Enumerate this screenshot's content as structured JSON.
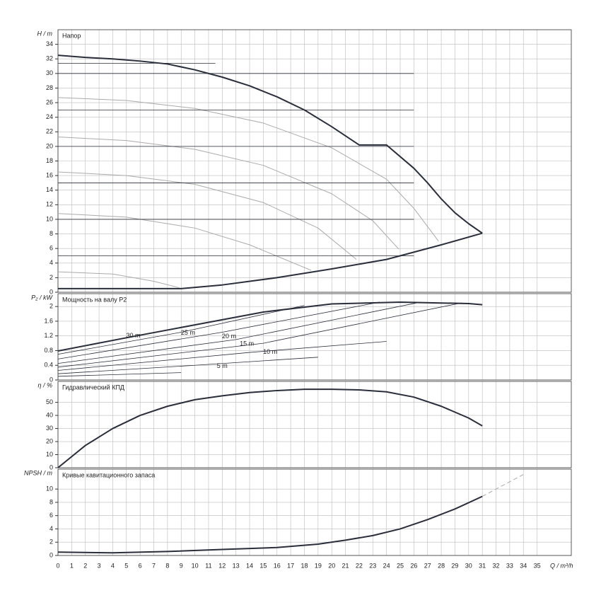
{
  "chart_data": [
    {
      "type": "line",
      "title": "Напор",
      "y_label": "H / m",
      "xlim": [
        0,
        37.5
      ],
      "ylim": [
        0,
        36
      ],
      "yticks": [
        0,
        2,
        4,
        6,
        8,
        10,
        12,
        14,
        16,
        18,
        20,
        22,
        24,
        26,
        28,
        30,
        32,
        34
      ],
      "grid": true,
      "series": [
        {
          "color": "#2a2e3a",
          "width": 2,
          "x": [
            0,
            2,
            4,
            6,
            8,
            10,
            12,
            14,
            16,
            18,
            20,
            22,
            24,
            26,
            27,
            28,
            29,
            30,
            31
          ],
          "values": [
            32.5,
            32.2,
            32,
            31.7,
            31.3,
            30.5,
            29.5,
            28.3,
            26.8,
            25,
            22.7,
            20.2,
            20.2,
            17,
            15,
            12.8,
            10.9,
            9.4,
            8.1
          ]
        },
        {
          "color": "#2a2e3a",
          "width": 2,
          "x": [
            0,
            9,
            12,
            16,
            20,
            24,
            25,
            28,
            31
          ],
          "values": [
            0.5,
            0.5,
            1,
            2,
            3.2,
            4.5,
            5,
            6.5,
            8.1
          ]
        },
        {
          "color": "#aaaaaa",
          "width": 1,
          "x": [
            0,
            5,
            10,
            15,
            20,
            24,
            26,
            27.8
          ],
          "values": [
            26.7,
            26.3,
            25.2,
            23.2,
            19.8,
            15.5,
            11.5,
            7
          ]
        },
        {
          "color": "#aaaaaa",
          "width": 1,
          "x": [
            0,
            5,
            10,
            15,
            20,
            23,
            24.9
          ],
          "values": [
            21.3,
            20.8,
            19.6,
            17.4,
            13.5,
            9.8,
            5.9
          ]
        },
        {
          "color": "#aaaaaa",
          "width": 1,
          "x": [
            0,
            5,
            10,
            15,
            19,
            21.8
          ],
          "values": [
            16.5,
            16,
            14.8,
            12.3,
            8.8,
            4.5
          ]
        },
        {
          "color": "#aaaaaa",
          "width": 1,
          "x": [
            0,
            5,
            10,
            14,
            18.5
          ],
          "values": [
            10.8,
            10.3,
            8.8,
            6.5,
            3
          ]
        },
        {
          "color": "#aaaaaa",
          "width": 1,
          "x": [
            0,
            4,
            7,
            8.9
          ],
          "values": [
            2.8,
            2.5,
            1.5,
            0.6
          ]
        },
        {
          "color": "#2a2e3a",
          "width": 0.8,
          "x": [
            0,
            11.5
          ],
          "values": [
            31.4,
            31.4
          ]
        },
        {
          "color": "#2a2e3a",
          "width": 0.8,
          "x": [
            0,
            26
          ],
          "values": [
            30,
            30
          ]
        },
        {
          "color": "#2a2e3a",
          "width": 0.8,
          "x": [
            0,
            26
          ],
          "values": [
            25,
            25
          ]
        },
        {
          "color": "#2a2e3a",
          "width": 0.8,
          "x": [
            0,
            26
          ],
          "values": [
            20,
            20
          ]
        },
        {
          "color": "#2a2e3a",
          "width": 0.8,
          "x": [
            0,
            26
          ],
          "values": [
            15,
            15
          ]
        },
        {
          "color": "#2a2e3a",
          "width": 0.8,
          "x": [
            0,
            26
          ],
          "values": [
            10,
            10
          ]
        },
        {
          "color": "#2a2e3a",
          "width": 0.8,
          "x": [
            0,
            26
          ],
          "values": [
            5,
            5
          ]
        }
      ]
    },
    {
      "type": "line",
      "title": "Мощность на валу P2",
      "y_label": "P₂ / kW",
      "xlim": [
        0,
        37.5
      ],
      "ylim": [
        0,
        2.35
      ],
      "yticks": [
        0,
        0.4,
        0.8,
        1.2,
        1.6,
        2
      ],
      "grid": true,
      "series": [
        {
          "color": "#2a2e3a",
          "width": 2,
          "x": [
            0,
            5,
            10,
            15,
            20,
            25,
            30,
            31
          ],
          "values": [
            0.79,
            1.15,
            1.5,
            1.85,
            2.07,
            2.12,
            2.08,
            2.05
          ]
        },
        {
          "color": "#2a2e3a",
          "width": 0.8,
          "x": [
            0,
            9,
            18
          ],
          "values": [
            0.7,
            1.3,
            2.03
          ]
        },
        {
          "color": "#2a2e3a",
          "width": 0.8,
          "x": [
            0,
            12,
            23.5
          ],
          "values": [
            0.57,
            1.3,
            2.12
          ]
        },
        {
          "color": "#2a2e3a",
          "width": 0.8,
          "x": [
            0,
            13,
            26.5
          ],
          "values": [
            0.45,
            1.1,
            2.12
          ]
        },
        {
          "color": "#2a2e3a",
          "width": 0.8,
          "x": [
            0,
            15,
            29.5
          ],
          "values": [
            0.35,
            1.0,
            2.1
          ]
        },
        {
          "color": "#2a2e3a",
          "width": 0.8,
          "x": [
            0,
            14,
            24
          ],
          "values": [
            0.26,
            0.75,
            1.05
          ]
        },
        {
          "color": "#2a2e3a",
          "width": 0.8,
          "x": [
            0,
            10,
            19
          ],
          "values": [
            0.17,
            0.4,
            0.62
          ]
        },
        {
          "color": "#2a2e3a",
          "width": 0.8,
          "x": [
            0,
            9
          ],
          "values": [
            0.1,
            0.2
          ]
        }
      ],
      "annotations": [
        {
          "text": "30 m",
          "x": 5.5,
          "y": 1.2
        },
        {
          "text": "25 m",
          "x": 9.5,
          "y": 1.28
        },
        {
          "text": "20 m",
          "x": 12.5,
          "y": 1.18
        },
        {
          "text": "15 m",
          "x": 13.8,
          "y": 0.98
        },
        {
          "text": "10 m",
          "x": 15.5,
          "y": 0.76
        },
        {
          "text": "5 m",
          "x": 12,
          "y": 0.37
        }
      ]
    },
    {
      "type": "line",
      "title": "Гидравлический КПД",
      "y_label": "η / %",
      "xlim": [
        0,
        37.5
      ],
      "ylim": [
        0,
        66
      ],
      "yticks": [
        0,
        10,
        20,
        30,
        40,
        50
      ],
      "grid": true,
      "series": [
        {
          "color": "#2a2e3a",
          "width": 2,
          "x": [
            0,
            2,
            4,
            6,
            8,
            10,
            12,
            14,
            16,
            18,
            20,
            22,
            24,
            26,
            28,
            30,
            31
          ],
          "values": [
            0,
            17,
            30,
            40,
            47,
            52,
            55,
            57.5,
            59,
            60,
            60,
            59.5,
            58,
            54,
            47,
            38,
            32
          ]
        }
      ]
    },
    {
      "type": "line",
      "title": "Кривые кавитационного запаса",
      "y_label": "NPSH / m",
      "xlim": [
        0,
        37.5
      ],
      "ylim": [
        0,
        13
      ],
      "yticks": [
        0,
        2,
        4,
        6,
        8,
        10
      ],
      "grid": true,
      "x_label": "Q / m³/h",
      "xticks": [
        0,
        1,
        2,
        3,
        4,
        5,
        6,
        7,
        8,
        9,
        10,
        11,
        12,
        13,
        14,
        15,
        16,
        17,
        18,
        19,
        20,
        21,
        22,
        23,
        24,
        25,
        26,
        27,
        28,
        29,
        30,
        31,
        32,
        33,
        34,
        35
      ],
      "series": [
        {
          "color": "#2a2e3a",
          "width": 2,
          "x": [
            0,
            4,
            8,
            12,
            16,
            19,
            21,
            23,
            25,
            27,
            29,
            31
          ],
          "values": [
            0.5,
            0.4,
            0.6,
            0.9,
            1.2,
            1.7,
            2.3,
            3,
            4,
            5.4,
            7,
            8.9
          ]
        },
        {
          "color": "#aaaaaa",
          "width": 1,
          "dash": true,
          "x": [
            31,
            34
          ],
          "values": [
            8.9,
            12.2
          ]
        }
      ]
    }
  ]
}
